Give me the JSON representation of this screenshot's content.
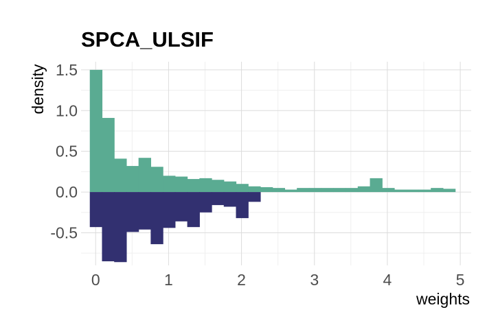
{
  "chart_data": {
    "type": "bar",
    "title": "SPCA_ULSIF",
    "xlabel": "weights",
    "ylabel": "density",
    "xlim": [
      -0.2,
      5.15
    ],
    "ylim": [
      -0.9,
      1.6
    ],
    "xticks": [
      0,
      1,
      2,
      3,
      4,
      5
    ],
    "xtick_labels": [
      "0",
      "1",
      "2",
      "3",
      "4",
      "5"
    ],
    "yticks": [
      -0.5,
      0.0,
      0.5,
      1.0,
      1.5
    ],
    "ytick_labels": [
      "-0.5",
      "0.0",
      "0.5",
      "1.0",
      "1.5"
    ],
    "grid": true,
    "legend": "none",
    "bin_width": 0.167,
    "bin_start": -0.08,
    "series": [
      {
        "color": "#5aab92",
        "direction": "up",
        "values": [
          1.5,
          0.91,
          0.41,
          0.32,
          0.42,
          0.31,
          0.2,
          0.19,
          0.16,
          0.17,
          0.15,
          0.13,
          0.1,
          0.07,
          0.06,
          0.05,
          0.03,
          0.05,
          0.05,
          0.05,
          0.05,
          0.05,
          0.07,
          0.17,
          0.05,
          0.03,
          0.03,
          0.03,
          0.05,
          0.04
        ]
      },
      {
        "color": "#323070",
        "direction": "down",
        "values": [
          0.43,
          0.85,
          0.86,
          0.49,
          0.46,
          0.64,
          0.44,
          0.36,
          0.43,
          0.25,
          0.16,
          0.18,
          0.32,
          0.12
        ]
      }
    ]
  }
}
